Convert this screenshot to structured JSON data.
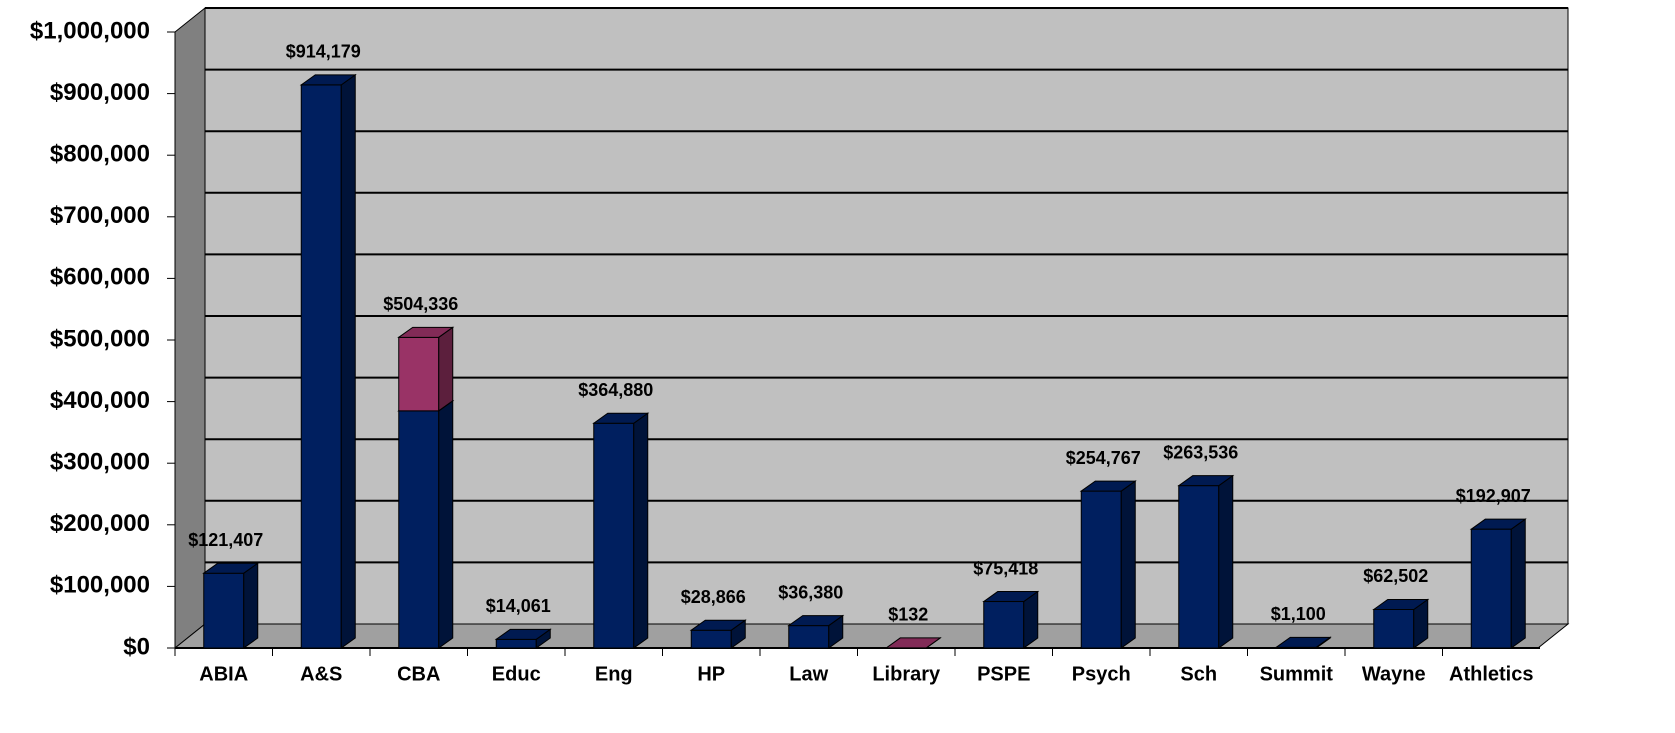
{
  "chart_data": {
    "type": "bar3d_stacked",
    "categories": [
      "ABIA",
      "A&S",
      "CBA",
      "Educ",
      "Eng",
      "HP",
      "Law",
      "Library",
      "PSPE",
      "Psych",
      "Sch",
      "Summit",
      "Wayne",
      "Athletics"
    ],
    "series": [
      {
        "color": "#001f5f",
        "values": [
          121407,
          914179,
          385000,
          14061,
          364880,
          28866,
          36380,
          null,
          75418,
          254767,
          263536,
          1100,
          62502,
          192907
        ]
      },
      {
        "color": "#993366",
        "values": [
          null,
          null,
          119336,
          null,
          null,
          null,
          null,
          132,
          null,
          null,
          null,
          null,
          null,
          null
        ]
      }
    ],
    "value_labels": [
      "$121,407",
      "$914,179",
      "$504,336",
      "$14,061",
      "$364,880",
      "$28,866",
      "$36,380",
      "$132",
      "$75,418",
      "$254,767",
      "$263,536",
      "$1,100",
      "$62,502",
      "$192,907"
    ],
    "ylim": [
      0,
      1000000
    ],
    "yticks": [
      {
        "value": 0,
        "label": "$0"
      },
      {
        "value": 100000,
        "label": "$100,000"
      },
      {
        "value": 200000,
        "label": "$200,000"
      },
      {
        "value": 300000,
        "label": "$300,000"
      },
      {
        "value": 400000,
        "label": "$400,000"
      },
      {
        "value": 500000,
        "label": "$500,000"
      },
      {
        "value": 600000,
        "label": "$600,000"
      },
      {
        "value": 700000,
        "label": "$700,000"
      },
      {
        "value": 800000,
        "label": "$800,000"
      },
      {
        "value": 900000,
        "label": "$900,000"
      },
      {
        "value": 1000000,
        "label": "$1,000,000"
      }
    ],
    "grid": true
  }
}
